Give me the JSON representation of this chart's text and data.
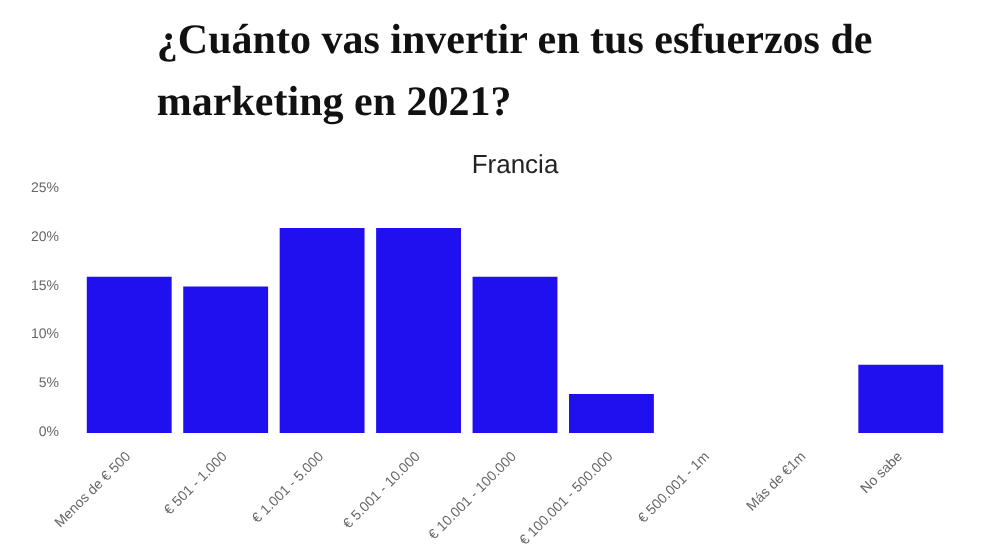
{
  "chart_data": {
    "type": "bar",
    "title": "¿Cuánto vas invertir en tus esfuerzos de\nmarketing en 2021?",
    "subtitle": "Francia",
    "categories": [
      "Menos de € 500",
      "€ 501 - 1.000",
      "€ 1.001 - 5.000",
      "€ 5.001 - 10.000",
      "€ 10.001 - 100.000",
      "€ 100.001 - 500.000",
      "€ 500.001 - 1m",
      "Más de €1m",
      "No sabe"
    ],
    "values": [
      16,
      15,
      21,
      21,
      16,
      4,
      0,
      0,
      7
    ],
    "color": "#2010f0",
    "ylim": [
      0,
      25
    ],
    "yticks": [
      {
        "value": 0,
        "label": "0%"
      },
      {
        "value": 5,
        "label": "5%"
      },
      {
        "value": 10,
        "label": "10%"
      },
      {
        "value": 15,
        "label": "15%"
      },
      {
        "value": 20,
        "label": "20%"
      },
      {
        "value": 25,
        "label": "25%"
      }
    ],
    "grid": false
  }
}
